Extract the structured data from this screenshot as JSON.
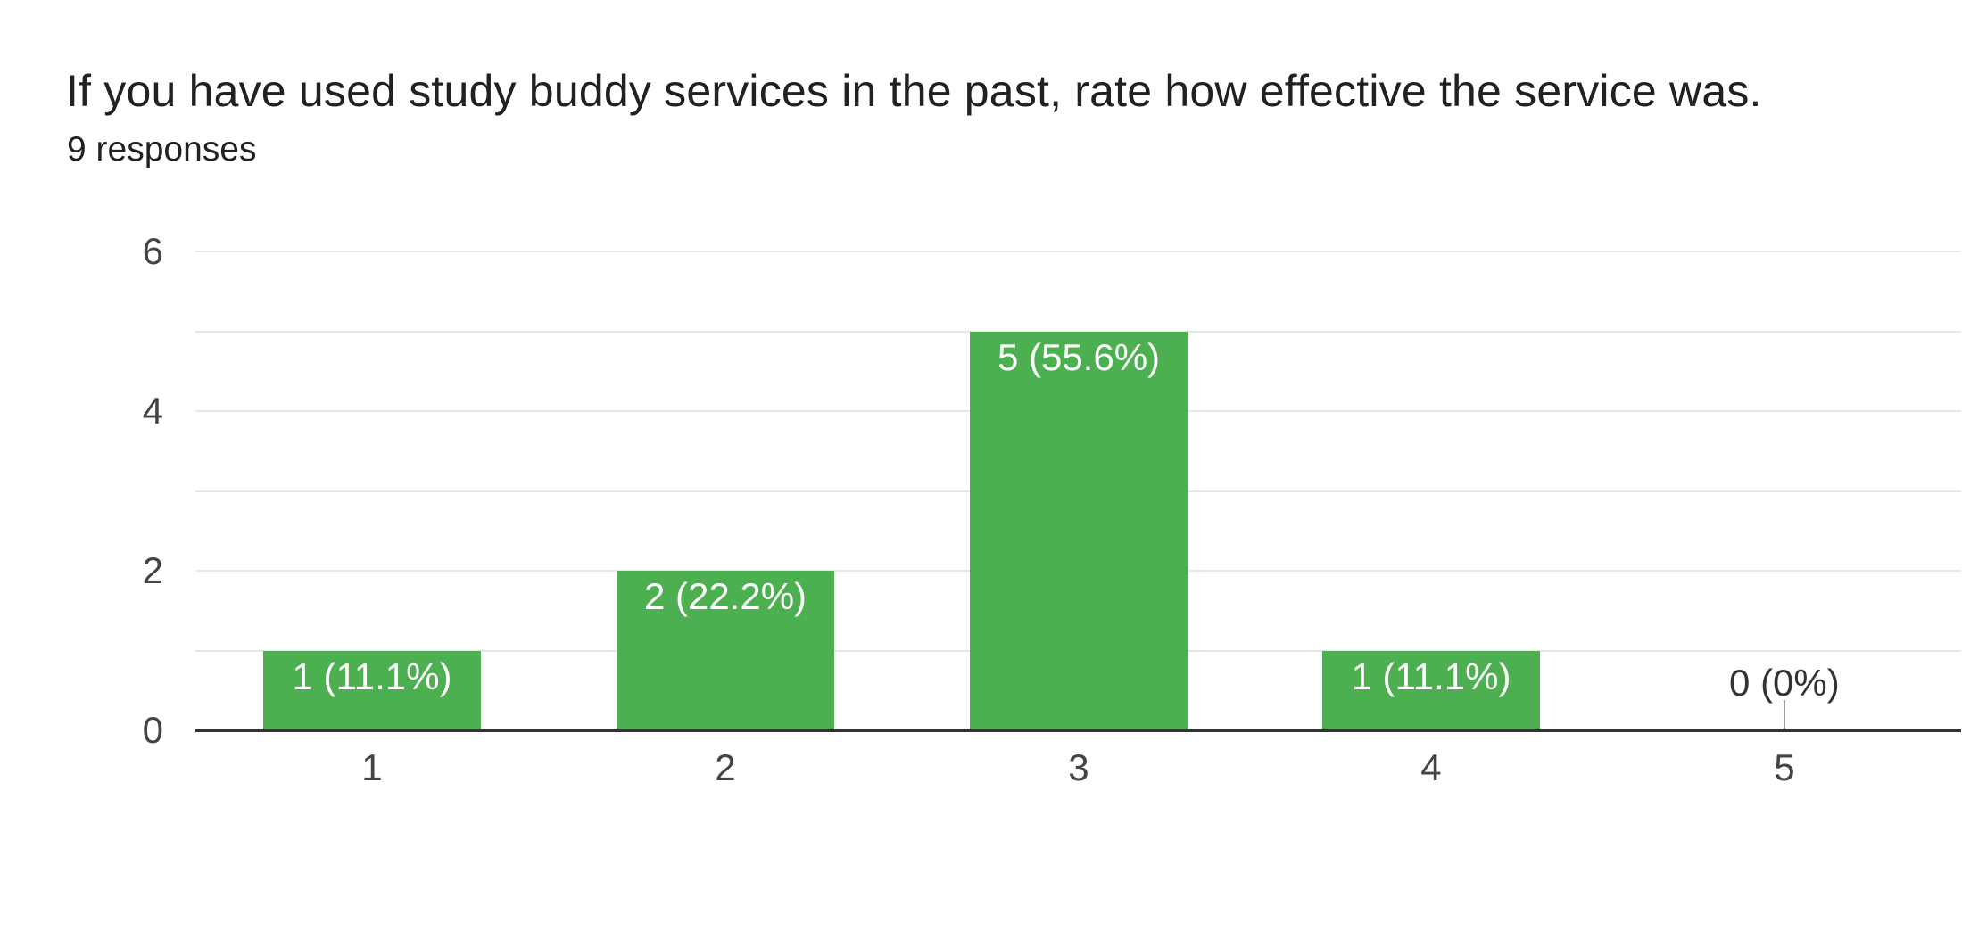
{
  "header": {
    "title": "If you have used study buddy services in the past, rate how effective the service was.",
    "responses": "9 responses"
  },
  "chart_data": {
    "type": "bar",
    "title": "If you have used study buddy services in the past, rate how effective the service was.",
    "subtitle": "9 responses",
    "total_responses": 9,
    "categories": [
      "1",
      "2",
      "3",
      "4",
      "5"
    ],
    "values": [
      1,
      2,
      5,
      1,
      0
    ],
    "bar_labels": [
      "1 (11.1%)",
      "2 (22.2%)",
      "5 (55.6%)",
      "1 (11.1%)",
      "0 (0%)"
    ],
    "xlabel": "",
    "ylabel": "",
    "ylim": [
      0,
      6
    ],
    "yticks": [
      0,
      2,
      4,
      6
    ],
    "grid_step": 1,
    "grid": true,
    "legend": "none",
    "colors": {
      "bar": "#4caf50",
      "grid": "#e6e6e6",
      "baseline": "#333333",
      "axis_text": "#444444",
      "annotation_inside": "#ffffff",
      "annotation_outside": "#333333",
      "zero_stem": "#9e9e9e",
      "title_text": "#202124"
    }
  }
}
